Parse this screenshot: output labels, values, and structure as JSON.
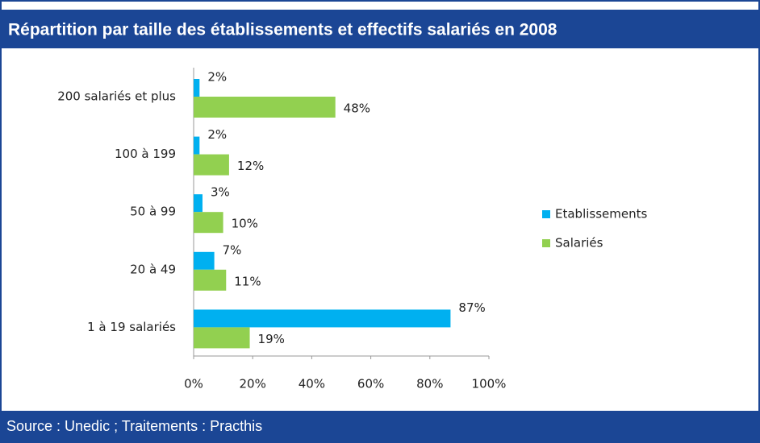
{
  "chart_data": {
    "type": "bar",
    "orientation": "horizontal",
    "title": "Répartition par taille des établissements et effectifs salariés en 2008",
    "source": "Source : Unedic ; Traitements : Practhis",
    "categories": [
      "200 salariés et plus",
      "100 à 199",
      "50 à 99",
      "20 à 49",
      "1 à 19 salariés"
    ],
    "series": [
      {
        "name": "Etablissements",
        "color": "#00b0f0",
        "values": [
          2,
          2,
          3,
          7,
          87
        ],
        "value_labels": [
          "2%",
          "2%",
          "3%",
          "7%",
          "87%"
        ]
      },
      {
        "name": "Salariés",
        "color": "#92d050",
        "values": [
          48,
          12,
          10,
          11,
          19
        ],
        "value_labels": [
          "48%",
          "12%",
          "10%",
          "11%",
          "19%"
        ]
      }
    ],
    "xlim": [
      0,
      100
    ],
    "xticks": [
      {
        "value": 0,
        "label": "0%"
      },
      {
        "value": 20,
        "label": "20%"
      },
      {
        "value": 40,
        "label": "40%"
      },
      {
        "value": 60,
        "label": "60%"
      },
      {
        "value": 80,
        "label": "80%"
      },
      {
        "value": 100,
        "label": "100%"
      }
    ],
    "grid": false,
    "legend": "right"
  }
}
